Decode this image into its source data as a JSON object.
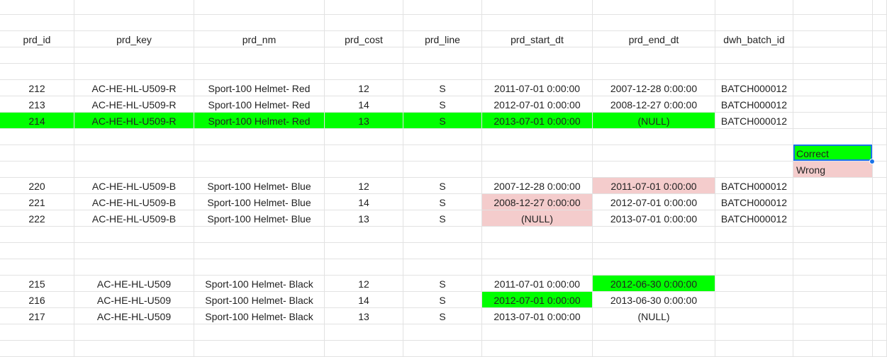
{
  "colors": {
    "correct": "#00ff00",
    "wrong": "#f4cccc",
    "selection": "#1a73e8",
    "grid": "#e2e2e2"
  },
  "columns": [
    "prd_id",
    "prd_key",
    "prd_nm",
    "prd_cost",
    "prd_line",
    "prd_start_dt",
    "prd_end_dt",
    "dwh_batch_id",
    "legend"
  ],
  "header": [
    "prd_id",
    "prd_key",
    "prd_nm",
    "prd_cost",
    "prd_line",
    "prd_start_dt",
    "prd_end_dt",
    "dwh_batch_id",
    ""
  ],
  "rows": [
    {
      "cells": [
        "",
        "",
        "",
        "",
        "",
        "",
        "",
        "",
        ""
      ]
    },
    {
      "cells": [
        "",
        "",
        "",
        "",
        "",
        "",
        "",
        "",
        ""
      ]
    },
    {
      "cells": [
        "212",
        "AC-HE-HL-U509-R",
        "Sport-100 Helmet- Red",
        "12",
        "S",
        "2011-07-01 0:00:00",
        "2007-12-28 0:00:00",
        "BATCH000012",
        ""
      ]
    },
    {
      "cells": [
        "213",
        "AC-HE-HL-U509-R",
        "Sport-100 Helmet- Red",
        "14",
        "S",
        "2012-07-01 0:00:00",
        "2008-12-27 0:00:00",
        "BATCH000012",
        ""
      ]
    },
    {
      "cells": [
        "214",
        "AC-HE-HL-U509-R",
        "Sport-100 Helmet- Red",
        "13",
        "S",
        "2013-07-01 0:00:00",
        "(NULL)",
        "BATCH000012",
        ""
      ],
      "fill": [
        "correct",
        "correct",
        "correct",
        "correct",
        "correct",
        "correct",
        "correct",
        "",
        ""
      ]
    },
    {
      "cells": [
        "",
        "",
        "",
        "",
        "",
        "",
        "",
        "",
        ""
      ]
    },
    {
      "cells": [
        "",
        "",
        "",
        "",
        "",
        "",
        "",
        "",
        "Correct"
      ],
      "fill": [
        "",
        "",
        "",
        "",
        "",
        "",
        "",
        "",
        "correct"
      ]
    },
    {
      "cells": [
        "",
        "",
        "",
        "",
        "",
        "",
        "",
        "",
        "Wrong"
      ],
      "fill": [
        "",
        "",
        "",
        "",
        "",
        "",
        "",
        "",
        "wrong"
      ]
    },
    {
      "cells": [
        "220",
        "AC-HE-HL-U509-B",
        "Sport-100 Helmet- Blue",
        "12",
        "S",
        "2007-12-28 0:00:00",
        "2011-07-01 0:00:00",
        "BATCH000012",
        ""
      ],
      "fill": [
        "",
        "",
        "",
        "",
        "",
        "",
        "wrong",
        "",
        ""
      ]
    },
    {
      "cells": [
        "221",
        "AC-HE-HL-U509-B",
        "Sport-100 Helmet- Blue",
        "14",
        "S",
        "2008-12-27 0:00:00",
        "2012-07-01 0:00:00",
        "BATCH000012",
        ""
      ],
      "fill": [
        "",
        "",
        "",
        "",
        "",
        "wrong",
        "",
        "",
        ""
      ]
    },
    {
      "cells": [
        "222",
        "AC-HE-HL-U509-B",
        "Sport-100 Helmet- Blue",
        "13",
        "S",
        "(NULL)",
        "2013-07-01 0:00:00",
        "BATCH000012",
        ""
      ],
      "fill": [
        "",
        "",
        "",
        "",
        "",
        "wrong",
        "",
        "",
        ""
      ]
    },
    {
      "cells": [
        "",
        "",
        "",
        "",
        "",
        "",
        "",
        "",
        ""
      ]
    },
    {
      "cells": [
        "",
        "",
        "",
        "",
        "",
        "",
        "",
        "",
        ""
      ]
    },
    {
      "cells": [
        "",
        "",
        "",
        "",
        "",
        "",
        "",
        "",
        ""
      ]
    },
    {
      "cells": [
        "215",
        "AC-HE-HL-U509",
        "Sport-100 Helmet- Black",
        "12",
        "S",
        "2011-07-01 0:00:00",
        "2012-06-30 0:00:00",
        "",
        ""
      ],
      "fill": [
        "",
        "",
        "",
        "",
        "",
        "",
        "correct",
        "",
        ""
      ]
    },
    {
      "cells": [
        "216",
        "AC-HE-HL-U509",
        "Sport-100 Helmet- Black",
        "14",
        "S",
        "2012-07-01 0:00:00",
        "2013-06-30 0:00:00",
        "",
        ""
      ],
      "fill": [
        "",
        "",
        "",
        "",
        "",
        "correct",
        "",
        "",
        ""
      ]
    },
    {
      "cells": [
        "217",
        "AC-HE-HL-U509",
        "Sport-100 Helmet- Black",
        "13",
        "S",
        "2013-07-01 0:00:00",
        "(NULL)",
        "",
        ""
      ]
    },
    {
      "cells": [
        "",
        "",
        "",
        "",
        "",
        "",
        "",
        "",
        ""
      ]
    },
    {
      "cells": [
        "",
        "",
        "",
        "",
        "",
        "",
        "",
        "",
        ""
      ]
    }
  ]
}
